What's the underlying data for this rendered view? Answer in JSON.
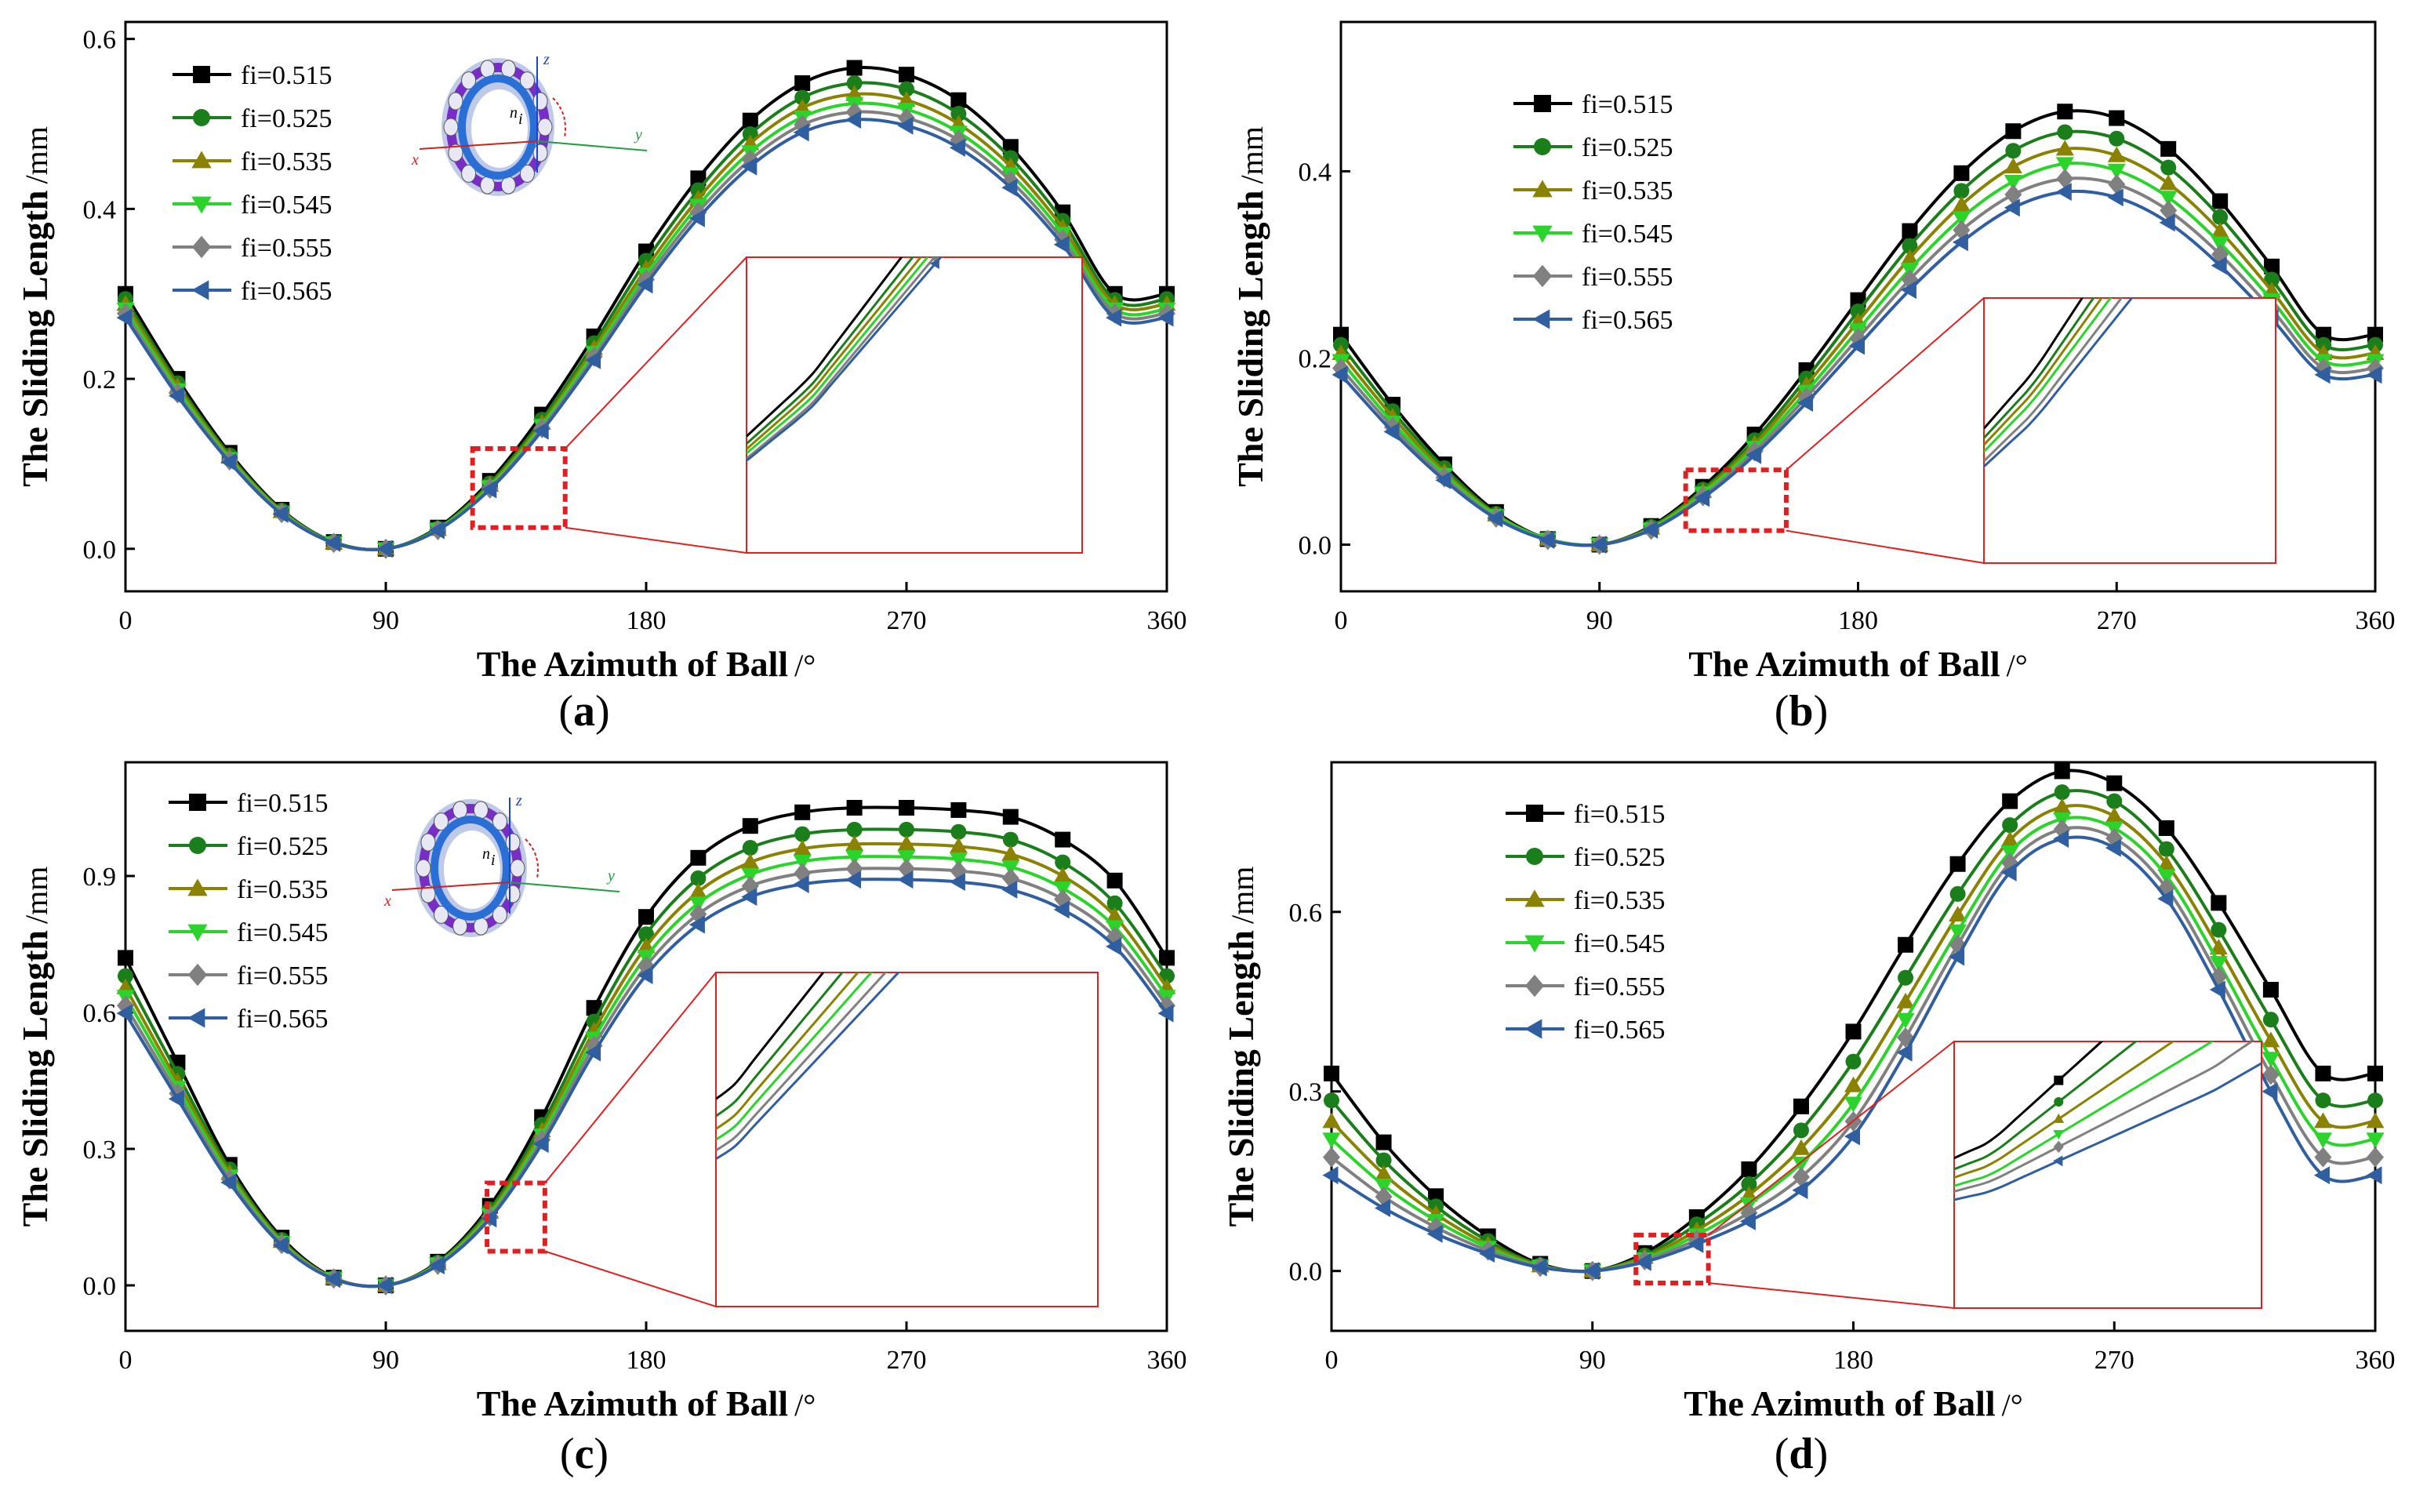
{
  "figure": {
    "series_names": [
      "fi=0.515",
      "fi=0.525",
      "fi=0.535",
      "fi=0.545",
      "fi=0.555",
      "fi=0.565"
    ],
    "series_colors": [
      "#000000",
      "#1a7f1a",
      "#8a8200",
      "#2ad42a",
      "#808080",
      "#2f5fa0"
    ],
    "marker_shapes": [
      "square",
      "circle",
      "triangle-up",
      "triangle-down",
      "diamond",
      "triangle-left"
    ],
    "zoom_box_color": "#e02020",
    "inset_axis_labels": [
      "z",
      "y",
      "x",
      "n",
      "i"
    ]
  },
  "chart_data": [
    {
      "panel": "a",
      "panel_label": "a",
      "type": "line",
      "xlabel": "The Azimuth of Ball",
      "xunit": "/°",
      "ylabel": "The Sliding Length",
      "yunit": "/mm",
      "xlim": [
        0,
        360
      ],
      "ylim": [
        -0.05,
        0.62
      ],
      "xticks": [
        "0",
        "90",
        "180",
        "270",
        "360"
      ],
      "yticks": [
        "0.0",
        "0.2",
        "0.4",
        "0.6"
      ],
      "ytick_values": [
        0,
        0.2,
        0.4,
        0.6
      ],
      "legend_position": "top-left",
      "has_bearing_inset": true,
      "x": [
        0,
        18,
        36,
        54,
        72,
        90,
        108,
        126,
        144,
        162,
        180,
        198,
        216,
        234,
        252,
        270,
        288,
        306,
        324,
        342,
        360
      ],
      "series": [
        {
          "name": "fi=0.515",
          "values": [
            0.3,
            0.2,
            0.113,
            0.046,
            0.008,
            0.0,
            0.025,
            0.08,
            0.158,
            0.25,
            0.35,
            0.436,
            0.504,
            0.548,
            0.566,
            0.558,
            0.528,
            0.473,
            0.396,
            0.3,
            0.3
          ]
        },
        {
          "name": "fi=0.525",
          "values": [
            0.294,
            0.195,
            0.11,
            0.045,
            0.008,
            0.0,
            0.024,
            0.077,
            0.152,
            0.242,
            0.339,
            0.422,
            0.488,
            0.531,
            0.548,
            0.541,
            0.512,
            0.46,
            0.386,
            0.293,
            0.294
          ]
        },
        {
          "name": "fi=0.535",
          "values": [
            0.288,
            0.191,
            0.108,
            0.044,
            0.007,
            0.0,
            0.023,
            0.075,
            0.148,
            0.236,
            0.33,
            0.412,
            0.477,
            0.519,
            0.535,
            0.528,
            0.5,
            0.45,
            0.378,
            0.288,
            0.288
          ]
        },
        {
          "name": "fi=0.545",
          "values": [
            0.282,
            0.187,
            0.106,
            0.043,
            0.007,
            0.0,
            0.023,
            0.073,
            0.145,
            0.231,
            0.323,
            0.404,
            0.467,
            0.508,
            0.524,
            0.517,
            0.49,
            0.441,
            0.371,
            0.282,
            0.282
          ]
        },
        {
          "name": "fi=0.555",
          "values": [
            0.277,
            0.183,
            0.104,
            0.042,
            0.007,
            0.0,
            0.022,
            0.071,
            0.142,
            0.226,
            0.317,
            0.396,
            0.458,
            0.499,
            0.514,
            0.507,
            0.481,
            0.433,
            0.364,
            0.277,
            0.277
          ]
        },
        {
          "name": "fi=0.565",
          "values": [
            0.272,
            0.18,
            0.102,
            0.041,
            0.007,
            0.0,
            0.022,
            0.07,
            0.139,
            0.222,
            0.311,
            0.389,
            0.45,
            0.49,
            0.505,
            0.498,
            0.472,
            0.425,
            0.358,
            0.272,
            0.272
          ]
        }
      ]
    },
    {
      "panel": "b",
      "panel_label": "b",
      "type": "line",
      "xlabel": "The Azimuth of Ball",
      "xunit": "/°",
      "ylabel": "The Sliding Length",
      "yunit": "/mm",
      "xlim": [
        0,
        360
      ],
      "ylim": [
        -0.05,
        0.56
      ],
      "xticks": [
        "0",
        "90",
        "180",
        "270",
        "360"
      ],
      "yticks": [
        "0.0",
        "0.2",
        "0.4"
      ],
      "ytick_values": [
        0,
        0.2,
        0.4
      ],
      "legend_position": "top-left",
      "has_bearing_inset": false,
      "x": [
        0,
        18,
        36,
        54,
        72,
        90,
        108,
        126,
        144,
        162,
        180,
        198,
        216,
        234,
        252,
        270,
        288,
        306,
        324,
        342,
        360
      ],
      "series": [
        {
          "name": "fi=0.515",
          "values": [
            0.225,
            0.15,
            0.086,
            0.035,
            0.006,
            0.0,
            0.02,
            0.062,
            0.118,
            0.187,
            0.262,
            0.336,
            0.398,
            0.443,
            0.464,
            0.457,
            0.424,
            0.368,
            0.298,
            0.225,
            0.225
          ]
        },
        {
          "name": "fi=0.525",
          "values": [
            0.214,
            0.143,
            0.082,
            0.033,
            0.006,
            0.0,
            0.019,
            0.059,
            0.112,
            0.178,
            0.25,
            0.32,
            0.379,
            0.422,
            0.442,
            0.435,
            0.404,
            0.351,
            0.284,
            0.214,
            0.214
          ]
        },
        {
          "name": "fi=0.535",
          "values": [
            0.205,
            0.137,
            0.078,
            0.032,
            0.006,
            0.0,
            0.018,
            0.057,
            0.108,
            0.171,
            0.239,
            0.307,
            0.364,
            0.405,
            0.424,
            0.417,
            0.387,
            0.336,
            0.272,
            0.205,
            0.205
          ]
        },
        {
          "name": "fi=0.545",
          "values": [
            0.197,
            0.131,
            0.075,
            0.031,
            0.006,
            0.0,
            0.017,
            0.055,
            0.104,
            0.164,
            0.23,
            0.295,
            0.35,
            0.389,
            0.408,
            0.401,
            0.372,
            0.323,
            0.262,
            0.197,
            0.197
          ]
        },
        {
          "name": "fi=0.555",
          "values": [
            0.189,
            0.126,
            0.072,
            0.029,
            0.005,
            0.0,
            0.016,
            0.052,
            0.1,
            0.158,
            0.221,
            0.284,
            0.337,
            0.375,
            0.392,
            0.386,
            0.358,
            0.311,
            0.252,
            0.189,
            0.189
          ]
        },
        {
          "name": "fi=0.565",
          "values": [
            0.182,
            0.121,
            0.069,
            0.028,
            0.005,
            0.0,
            0.016,
            0.05,
            0.096,
            0.152,
            0.213,
            0.273,
            0.324,
            0.361,
            0.378,
            0.372,
            0.345,
            0.299,
            0.242,
            0.182,
            0.182
          ]
        }
      ]
    },
    {
      "panel": "c",
      "panel_label": "c",
      "type": "line",
      "xlabel": "The Azimuth of Ball",
      "xunit": "/°",
      "ylabel": "The Sliding Length",
      "yunit": "/mm",
      "xlim": [
        0,
        360
      ],
      "ylim": [
        -0.1,
        1.15
      ],
      "xticks": [
        "0",
        "90",
        "180",
        "270",
        "360"
      ],
      "yticks": [
        "0.0",
        "0.3",
        "0.6",
        "0.9"
      ],
      "ytick_values": [
        0,
        0.3,
        0.6,
        0.9
      ],
      "legend_position": "top-left",
      "has_bearing_inset": true,
      "x": [
        0,
        18,
        36,
        54,
        72,
        90,
        108,
        126,
        144,
        162,
        180,
        198,
        216,
        234,
        252,
        270,
        288,
        306,
        324,
        342,
        360
      ],
      "series": [
        {
          "name": "fi=0.515",
          "values": [
            0.72,
            0.49,
            0.265,
            0.105,
            0.017,
            0.0,
            0.052,
            0.175,
            0.37,
            0.61,
            0.81,
            0.94,
            1.01,
            1.04,
            1.05,
            1.05,
            1.045,
            1.03,
            0.98,
            0.89,
            0.72
          ]
        },
        {
          "name": "fi=0.525",
          "values": [
            0.68,
            0.465,
            0.255,
            0.1,
            0.016,
            0.0,
            0.05,
            0.167,
            0.353,
            0.58,
            0.772,
            0.895,
            0.962,
            0.992,
            1.002,
            1.002,
            0.997,
            0.98,
            0.93,
            0.84,
            0.68
          ]
        },
        {
          "name": "fi=0.535",
          "values": [
            0.655,
            0.448,
            0.247,
            0.097,
            0.016,
            0.0,
            0.048,
            0.161,
            0.34,
            0.56,
            0.745,
            0.865,
            0.93,
            0.96,
            0.97,
            0.97,
            0.965,
            0.948,
            0.9,
            0.812,
            0.655
          ]
        },
        {
          "name": "fi=0.545",
          "values": [
            0.635,
            0.435,
            0.24,
            0.094,
            0.015,
            0.0,
            0.047,
            0.156,
            0.33,
            0.543,
            0.723,
            0.84,
            0.903,
            0.932,
            0.942,
            0.942,
            0.937,
            0.92,
            0.873,
            0.788,
            0.635
          ]
        },
        {
          "name": "fi=0.555",
          "values": [
            0.615,
            0.422,
            0.233,
            0.091,
            0.015,
            0.0,
            0.045,
            0.151,
            0.32,
            0.527,
            0.702,
            0.816,
            0.878,
            0.906,
            0.916,
            0.916,
            0.911,
            0.895,
            0.849,
            0.766,
            0.615
          ]
        },
        {
          "name": "fi=0.565",
          "values": [
            0.598,
            0.41,
            0.226,
            0.088,
            0.014,
            0.0,
            0.044,
            0.147,
            0.311,
            0.512,
            0.682,
            0.793,
            0.854,
            0.882,
            0.892,
            0.892,
            0.887,
            0.87,
            0.826,
            0.745,
            0.598
          ]
        }
      ]
    },
    {
      "panel": "d",
      "panel_label": "d",
      "type": "line",
      "xlabel": "The Azimuth of Ball",
      "xunit": "/°",
      "ylabel": "The Sliding Length",
      "yunit": "/mm",
      "xlim": [
        0,
        360
      ],
      "ylim": [
        -0.1,
        0.85
      ],
      "xticks": [
        "0",
        "90",
        "180",
        "270",
        "360"
      ],
      "yticks": [
        "0.0",
        "0.3",
        "0.6"
      ],
      "ytick_values": [
        0,
        0.3,
        0.6
      ],
      "legend_position": "top-left",
      "has_bearing_inset": false,
      "x": [
        0,
        18,
        36,
        54,
        72,
        90,
        108,
        126,
        144,
        162,
        180,
        198,
        216,
        234,
        252,
        270,
        288,
        306,
        324,
        342,
        360
      ],
      "series": [
        {
          "name": "fi=0.515",
          "values": [
            0.33,
            0.215,
            0.125,
            0.058,
            0.012,
            0.0,
            0.03,
            0.09,
            0.17,
            0.275,
            0.4,
            0.545,
            0.68,
            0.785,
            0.835,
            0.815,
            0.74,
            0.615,
            0.47,
            0.33,
            0.33
          ]
        },
        {
          "name": "fi=0.525",
          "values": [
            0.285,
            0.185,
            0.108,
            0.05,
            0.01,
            0.0,
            0.026,
            0.078,
            0.145,
            0.235,
            0.35,
            0.49,
            0.63,
            0.745,
            0.8,
            0.785,
            0.705,
            0.57,
            0.42,
            0.285,
            0.285
          ]
        },
        {
          "name": "fi=0.535",
          "values": [
            0.25,
            0.162,
            0.095,
            0.044,
            0.009,
            0.0,
            0.023,
            0.068,
            0.127,
            0.205,
            0.31,
            0.45,
            0.595,
            0.72,
            0.775,
            0.76,
            0.68,
            0.54,
            0.385,
            0.25,
            0.25
          ]
        },
        {
          "name": "fi=0.545",
          "values": [
            0.22,
            0.143,
            0.084,
            0.039,
            0.008,
            0.0,
            0.02,
            0.06,
            0.112,
            0.18,
            0.28,
            0.42,
            0.568,
            0.7,
            0.755,
            0.74,
            0.66,
            0.515,
            0.355,
            0.22,
            0.22
          ]
        },
        {
          "name": "fi=0.555",
          "values": [
            0.19,
            0.124,
            0.073,
            0.034,
            0.007,
            0.0,
            0.018,
            0.052,
            0.097,
            0.157,
            0.25,
            0.39,
            0.545,
            0.682,
            0.738,
            0.723,
            0.64,
            0.492,
            0.328,
            0.19,
            0.19
          ]
        },
        {
          "name": "fi=0.565",
          "values": [
            0.16,
            0.105,
            0.062,
            0.029,
            0.006,
            0.0,
            0.015,
            0.045,
            0.083,
            0.135,
            0.225,
            0.365,
            0.525,
            0.666,
            0.722,
            0.707,
            0.622,
            0.47,
            0.3,
            0.16,
            0.16
          ]
        }
      ]
    }
  ]
}
